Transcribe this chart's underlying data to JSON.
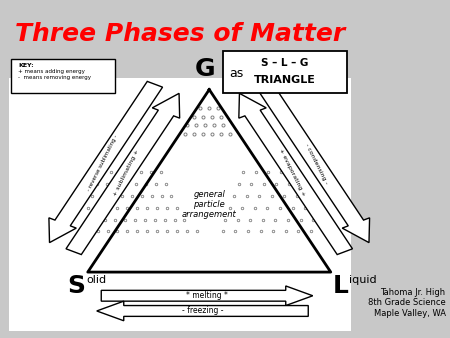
{
  "title": "Three Phases of Matter",
  "title_color": "#ff0000",
  "title_fontsize": 18,
  "bg_color": "#c8c8c8",
  "slide_color": "#ffffff",
  "slg_line1": "S – L – G",
  "slg_line2": "TRIANGLE",
  "gas_label_big": "G",
  "gas_label_small": "as",
  "solid_label_big": "S",
  "solid_label_small": "olid",
  "liquid_label_big": "L",
  "liquid_label_small": "iquid",
  "center_text": "general\nparticle\narrangement",
  "key_title": "KEY:",
  "key_line1": "+ means adding energy",
  "key_line2": "-  means removing energy",
  "left_arrow1_label": "+ sublimating +",
  "left_arrow2_label": "- reverse sublimating -",
  "right_arrow1_label": "+ evaporating +",
  "right_arrow2_label": "- condensing -",
  "bottom_arrow1_label": "* melting *",
  "bottom_arrow2_label": "- freezing -",
  "credit": "Tahoma Jr. High\n8th Grade Science\nMaple Valley, WA"
}
